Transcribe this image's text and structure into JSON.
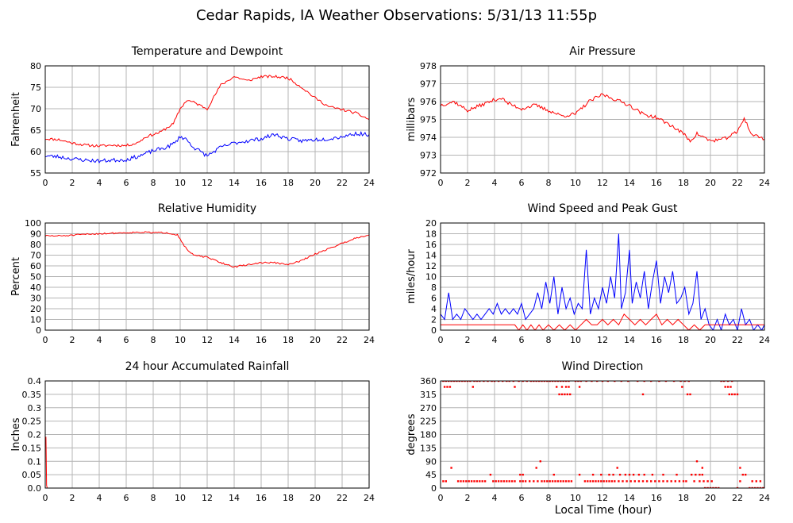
{
  "title": "Cedar Rapids, IA Weather Observations: 5/31/13 11:55p",
  "x_axis_caption": "Local Time (hour)",
  "colors": {
    "red": "#ff0000",
    "blue": "#0000ff",
    "grid": "#b4b4b4",
    "axis": "#000000"
  },
  "chart_data": [
    {
      "id": "temp",
      "type": "line",
      "title": "Temperature and Dewpoint",
      "ylabel": "Fahrenheit",
      "xlabel": "",
      "xlim": [
        0,
        24
      ],
      "ylim": [
        55,
        80
      ],
      "xticks": [
        0,
        2,
        4,
        6,
        8,
        10,
        12,
        14,
        16,
        18,
        20,
        22,
        24
      ],
      "yticks": [
        55,
        60,
        65,
        70,
        75,
        80
      ],
      "grid": true,
      "series": [
        {
          "color": "#ff0000",
          "noise": 0.3,
          "seed": 11,
          "x": [
            0,
            1,
            2,
            3,
            4,
            5,
            6,
            6.8,
            7.5,
            8.5,
            9.5,
            10,
            10.5,
            11,
            12,
            13,
            14,
            15,
            16,
            17,
            18,
            19,
            20,
            21,
            22,
            23,
            24
          ],
          "y": [
            63,
            62.8,
            62,
            61.5,
            61.3,
            61.5,
            61.4,
            62,
            63.5,
            64.5,
            66.5,
            70,
            72,
            71.5,
            70,
            75.5,
            77.5,
            76.5,
            77.5,
            77.5,
            77.2,
            75,
            72.5,
            70.5,
            69.8,
            69,
            67.5
          ]
        },
        {
          "color": "#0000ff",
          "noise": 0.45,
          "seed": 23,
          "x": [
            0,
            1,
            2,
            3,
            4,
            5,
            6,
            7,
            8,
            9,
            9.6,
            10,
            10.4,
            11,
            12,
            13,
            14,
            15,
            16,
            17,
            18,
            19,
            20,
            21,
            22,
            23,
            24
          ],
          "y": [
            59,
            58.8,
            58.3,
            58,
            57.8,
            58,
            58.1,
            59,
            60.2,
            61,
            62,
            63.5,
            63,
            61,
            59,
            61,
            62,
            62.5,
            63,
            64,
            63,
            62.5,
            62.8,
            63,
            63.5,
            64.2,
            64
          ]
        }
      ]
    },
    {
      "id": "pressure",
      "type": "line",
      "title": "Air Pressure",
      "ylabel": "millibars",
      "xlabel": "",
      "xlim": [
        0,
        24
      ],
      "ylim": [
        972,
        978
      ],
      "xticks": [
        0,
        2,
        4,
        6,
        8,
        10,
        12,
        14,
        16,
        18,
        20,
        22,
        24
      ],
      "yticks": [
        972,
        973,
        974,
        975,
        976,
        977,
        978
      ],
      "grid": true,
      "series": [
        {
          "color": "#ff0000",
          "noise": 0.1,
          "seed": 37,
          "x": [
            0,
            1,
            2,
            3,
            4,
            4.5,
            5,
            6,
            7,
            8,
            9,
            10,
            11,
            12,
            13,
            14,
            15,
            16,
            17,
            18,
            18.5,
            19,
            19.5,
            20,
            21,
            22,
            22.5,
            23,
            24
          ],
          "y": [
            975.8,
            976,
            975.5,
            975.8,
            976.1,
            976.2,
            975.9,
            975.6,
            975.8,
            975.5,
            975.2,
            975.3,
            976,
            976.4,
            976.1,
            975.8,
            975.3,
            975.1,
            974.7,
            974.2,
            973.8,
            974.2,
            974,
            973.8,
            973.9,
            974.3,
            975.1,
            974.2,
            973.9
          ]
        }
      ]
    },
    {
      "id": "humidity",
      "type": "line",
      "title": "Relative Humidity",
      "ylabel": "Percent",
      "xlabel": "",
      "xlim": [
        0,
        24
      ],
      "ylim": [
        0,
        100
      ],
      "xticks": [
        0,
        2,
        4,
        6,
        8,
        10,
        12,
        14,
        16,
        18,
        20,
        22,
        24
      ],
      "yticks": [
        0,
        10,
        20,
        30,
        40,
        50,
        60,
        70,
        80,
        90,
        100
      ],
      "grid": true,
      "series": [
        {
          "color": "#ff0000",
          "noise": 0.7,
          "seed": 51,
          "x": [
            0,
            1,
            2,
            3,
            4,
            5,
            6,
            7,
            8,
            9,
            9.8,
            10.5,
            11,
            12,
            13,
            14,
            15,
            16,
            17,
            18,
            19,
            20,
            21,
            22,
            23,
            24
          ],
          "y": [
            88,
            88,
            88.5,
            89.5,
            90,
            90.5,
            91,
            91.5,
            91,
            91,
            89,
            75,
            70,
            68,
            63,
            59,
            61,
            63,
            63,
            61,
            65,
            71,
            76,
            81,
            86,
            89
          ]
        }
      ]
    },
    {
      "id": "wind",
      "type": "line",
      "title": "Wind Speed and Peak Gust",
      "ylabel": "miles/hour",
      "xlabel": "",
      "xlim": [
        0,
        24
      ],
      "ylim": [
        0,
        20
      ],
      "xticks": [
        0,
        2,
        4,
        6,
        8,
        10,
        12,
        14,
        16,
        18,
        20,
        22,
        24
      ],
      "yticks": [
        0,
        2,
        4,
        6,
        8,
        10,
        12,
        14,
        16,
        18,
        20
      ],
      "grid": true,
      "series": [
        {
          "color": "#0000ff",
          "seed": 73,
          "x": [
            0,
            0.3,
            0.6,
            0.9,
            1.2,
            1.5,
            1.8,
            2.1,
            2.4,
            2.7,
            3,
            3.3,
            3.6,
            3.9,
            4.2,
            4.5,
            4.8,
            5.1,
            5.4,
            5.7,
            6,
            6.3,
            6.6,
            6.9,
            7.2,
            7.5,
            7.8,
            8.1,
            8.4,
            8.7,
            9,
            9.3,
            9.6,
            9.9,
            10.2,
            10.5,
            10.8,
            11.1,
            11.4,
            11.7,
            12,
            12.3,
            12.6,
            12.9,
            13.2,
            13.4,
            13.7,
            14,
            14.2,
            14.5,
            14.8,
            15.1,
            15.4,
            15.7,
            16,
            16.3,
            16.6,
            16.9,
            17.2,
            17.5,
            17.8,
            18.1,
            18.4,
            18.7,
            19,
            19.3,
            19.6,
            19.9,
            20.2,
            20.5,
            20.8,
            21.1,
            21.4,
            21.7,
            22,
            22.3,
            22.6,
            22.9,
            23.2,
            23.5,
            23.8,
            24
          ],
          "y": [
            3,
            2,
            7,
            2,
            3,
            2,
            4,
            3,
            2,
            3,
            2,
            3,
            4,
            3,
            5,
            3,
            4,
            3,
            4,
            3,
            5,
            2,
            3,
            4,
            7,
            4,
            9,
            5,
            10,
            3,
            8,
            4,
            6,
            3,
            5,
            4,
            15,
            3,
            6,
            4,
            8,
            5,
            10,
            6,
            18,
            4,
            7,
            15,
            5,
            9,
            6,
            11,
            4,
            9,
            13,
            5,
            10,
            7,
            11,
            5,
            6,
            8,
            3,
            5,
            11,
            2,
            4,
            1,
            0,
            2,
            0,
            3,
            1,
            2,
            0,
            4,
            1,
            2,
            0,
            1,
            0,
            1
          ]
        },
        {
          "color": "#ff0000",
          "seed": 89,
          "x": [
            0,
            0.5,
            1,
            1.5,
            2,
            2.5,
            3,
            3.5,
            4,
            4.5,
            5,
            5.5,
            5.8,
            6.1,
            6.4,
            6.7,
            7,
            7.3,
            7.6,
            8,
            8.4,
            8.8,
            9.2,
            9.6,
            10,
            10.4,
            10.8,
            11.2,
            11.6,
            12,
            12.4,
            12.8,
            13.2,
            13.6,
            14,
            14.4,
            14.8,
            15.2,
            15.6,
            16,
            16.4,
            16.8,
            17.2,
            17.6,
            18,
            18.4,
            18.8,
            19.2,
            19.6,
            20,
            24
          ],
          "y": [
            1,
            1,
            1,
            1,
            1,
            1,
            1,
            1,
            1,
            1,
            1,
            1,
            0,
            1,
            0,
            1,
            0,
            1,
            0,
            1,
            0,
            1,
            0,
            1,
            0,
            1,
            2,
            1,
            1,
            2,
            1,
            2,
            1,
            3,
            2,
            1,
            2,
            1,
            2,
            3,
            1,
            2,
            1,
            2,
            1,
            0,
            1,
            0,
            1,
            1,
            1
          ]
        }
      ]
    },
    {
      "id": "rain",
      "type": "line",
      "title": "24 hour Accumulated Rainfall",
      "ylabel": "Inches",
      "xlabel": "",
      "xlim": [
        0,
        24
      ],
      "ylim": [
        0,
        0.4
      ],
      "xticks": [
        0,
        2,
        4,
        6,
        8,
        10,
        12,
        14,
        16,
        18,
        20,
        22,
        24
      ],
      "yticks": [
        0.0,
        0.05,
        0.1,
        0.15,
        0.2,
        0.25,
        0.3,
        0.35,
        0.4
      ],
      "ytick_labels": [
        "0.0",
        "0.05",
        "0.1",
        "0.15",
        "0.2",
        "0.25",
        "0.3",
        "0.35",
        "0.4"
      ],
      "grid": true,
      "series": [
        {
          "color": "#ff0000",
          "x": [
            0,
            0.05,
            0.1,
            0.15,
            24
          ],
          "y": [
            0.19,
            0.19,
            0.01,
            0,
            0
          ]
        }
      ]
    },
    {
      "id": "direction",
      "type": "scatter",
      "title": "Wind Direction",
      "ylabel": "degrees",
      "xlabel": "Local Time (hour)",
      "xlim": [
        0,
        24
      ],
      "ylim": [
        0,
        360
      ],
      "xticks": [
        0,
        2,
        4,
        6,
        8,
        10,
        12,
        14,
        16,
        18,
        20,
        22,
        24
      ],
      "yticks": [
        0,
        45,
        90,
        135,
        180,
        225,
        270,
        315,
        360
      ],
      "grid": true,
      "point_groups": [
        {
          "color": "#ff0000",
          "y": 360,
          "x": [
            0.2,
            0.4,
            0.6,
            0.8,
            1.0,
            1.2,
            1.4,
            1.6,
            1.8,
            2.0,
            2.2,
            2.5,
            2.7,
            2.9,
            3.2,
            3.5,
            3.8,
            4.0,
            4.3,
            4.6,
            4.9,
            5.1,
            5.4,
            5.8,
            6.1,
            6.4,
            6.7,
            6.9,
            7.1,
            7.3,
            7.5,
            7.7,
            7.9,
            8.1,
            8.3,
            8.5,
            8.7,
            8.9,
            9.1,
            9.3,
            9.5,
            10.0,
            10.2,
            10.4,
            10.8,
            11.2,
            11.6,
            12.0,
            12.4,
            12.9,
            13.4,
            13.9,
            14.6,
            15.1,
            15.6,
            16.2,
            16.7,
            17.3,
            17.8,
            18.1,
            18.4,
            20.8,
            21.0,
            21.3,
            21.6
          ]
        },
        {
          "color": "#ff0000",
          "y": 340,
          "x": [
            0.3,
            0.5,
            0.7,
            2.4,
            5.5,
            8.6,
            9.0,
            9.3,
            9.5,
            10.3,
            17.9,
            21.1,
            21.3,
            21.5
          ]
        },
        {
          "color": "#ff0000",
          "y": 315,
          "x": [
            8.8,
            9.0,
            9.2,
            9.4,
            9.6,
            15.0,
            18.3,
            18.5,
            21.4,
            21.6,
            21.8,
            22.0
          ]
        },
        {
          "color": "#ff0000",
          "y": 23,
          "x": [
            0.2,
            0.4,
            1.3,
            1.5,
            1.7,
            1.9,
            2.1,
            2.3,
            2.5,
            2.7,
            2.9,
            3.1,
            3.3,
            3.9,
            4.1,
            4.3,
            4.5,
            4.7,
            4.9,
            5.1,
            5.3,
            5.5,
            5.9,
            6.1,
            6.3,
            6.6,
            6.9,
            7.2,
            7.5,
            7.7,
            7.9,
            8.1,
            8.3,
            8.5,
            8.7,
            8.9,
            9.1,
            9.3,
            9.5,
            9.7,
            10.7,
            10.9,
            11.1,
            11.3,
            11.5,
            11.7,
            11.9,
            12.1,
            12.3,
            12.5,
            12.7,
            12.9,
            13.2,
            13.5,
            13.8,
            14.1,
            14.4,
            14.7,
            15.0,
            15.3,
            15.6,
            15.9,
            16.2,
            16.5,
            16.8,
            17.1,
            17.4,
            17.7,
            18.0,
            18.2,
            18.8,
            19.2,
            19.5,
            19.8,
            20.1,
            22.2,
            23.1,
            23.4,
            23.7
          ]
        },
        {
          "color": "#ff0000",
          "y": 45,
          "x": [
            3.7,
            5.9,
            6.1,
            8.4,
            10.3,
            11.3,
            11.9,
            12.5,
            12.8,
            13.3,
            13.7,
            14.0,
            14.3,
            14.7,
            15.1,
            15.7,
            16.5,
            17.5,
            18.6,
            18.9,
            19.2,
            19.4,
            22.4,
            22.6
          ]
        },
        {
          "color": "#ff0000",
          "y": 0,
          "x": [
            19.6,
            19.8,
            20.0,
            20.2,
            20.4,
            20.6,
            22.0,
            22.9,
            23.1,
            23.3,
            23.5,
            23.7,
            23.9
          ]
        },
        {
          "color": "#ff0000",
          "y": 68,
          "x": [
            0.8,
            7.1,
            13.1,
            19.4,
            22.2
          ]
        },
        {
          "color": "#ff0000",
          "y": 90,
          "x": [
            7.4,
            19.0
          ]
        }
      ]
    }
  ]
}
